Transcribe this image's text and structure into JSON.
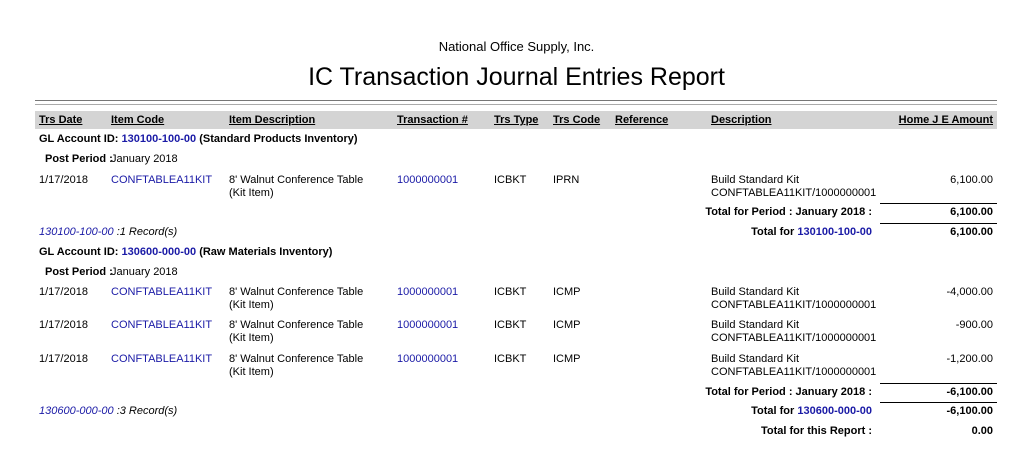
{
  "company": "National Office Supply, Inc.",
  "title": "IC Transaction Journal Entries Report",
  "columns": [
    "Trs Date",
    "Item Code",
    "Item Description",
    "Transaction #",
    "Trs Type",
    "Trs Code",
    "Reference",
    "Description",
    "Home J E Amount"
  ],
  "colors": {
    "link": "#1a1aa6",
    "header_bg": "#d4d4d4"
  },
  "labels": {
    "gl_account": "GL Account ID:",
    "post_period": "Post Period :",
    "total_for": "Total for"
  },
  "accounts": [
    {
      "id": "130100-100-00",
      "name": "(Standard Products Inventory)",
      "period": "January 2018",
      "rows": [
        {
          "date": "1/17/2018",
          "item": "CONFTABLEA11KIT",
          "desc1": "8' Walnut Conference Table",
          "desc2": "(Kit Item)",
          "trx": "1000000001",
          "type": "ICBKT",
          "code": "IPRN",
          "reference": "",
          "d1": "Build Standard Kit",
          "d2": "CONFTABLEA11KIT/1000000001",
          "amount": "6,100.00"
        }
      ],
      "period_total_label": "Total for Period : January 2018 :",
      "period_total": "6,100.00",
      "records": ":1 Record(s)",
      "account_total": "6,100.00"
    },
    {
      "id": "130600-000-00",
      "name": "(Raw Materials Inventory)",
      "period": "January 2018",
      "rows": [
        {
          "date": "1/17/2018",
          "item": "CONFTABLEA11KIT",
          "desc1": "8' Walnut Conference Table",
          "desc2": "(Kit Item)",
          "trx": "1000000001",
          "type": "ICBKT",
          "code": "ICMP",
          "reference": "",
          "d1": "Build Standard Kit",
          "d2": "CONFTABLEA11KIT/1000000001",
          "amount": "-4,000.00"
        },
        {
          "date": "1/17/2018",
          "item": "CONFTABLEA11KIT",
          "desc1": "8' Walnut Conference Table",
          "desc2": "(Kit Item)",
          "trx": "1000000001",
          "type": "ICBKT",
          "code": "ICMP",
          "reference": "",
          "d1": "Build Standard Kit",
          "d2": "CONFTABLEA11KIT/1000000001",
          "amount": "-900.00"
        },
        {
          "date": "1/17/2018",
          "item": "CONFTABLEA11KIT",
          "desc1": "8' Walnut Conference Table",
          "desc2": "(Kit Item)",
          "trx": "1000000001",
          "type": "ICBKT",
          "code": "ICMP",
          "reference": "",
          "d1": "Build Standard Kit",
          "d2": "CONFTABLEA11KIT/1000000001",
          "amount": "-1,200.00"
        }
      ],
      "period_total_label": "Total for Period : January 2018 :",
      "period_total": "-6,100.00",
      "records": ":3 Record(s)",
      "account_total": "-6,100.00"
    }
  ],
  "report_total_label": "Total for this Report :",
  "report_total": "0.00"
}
